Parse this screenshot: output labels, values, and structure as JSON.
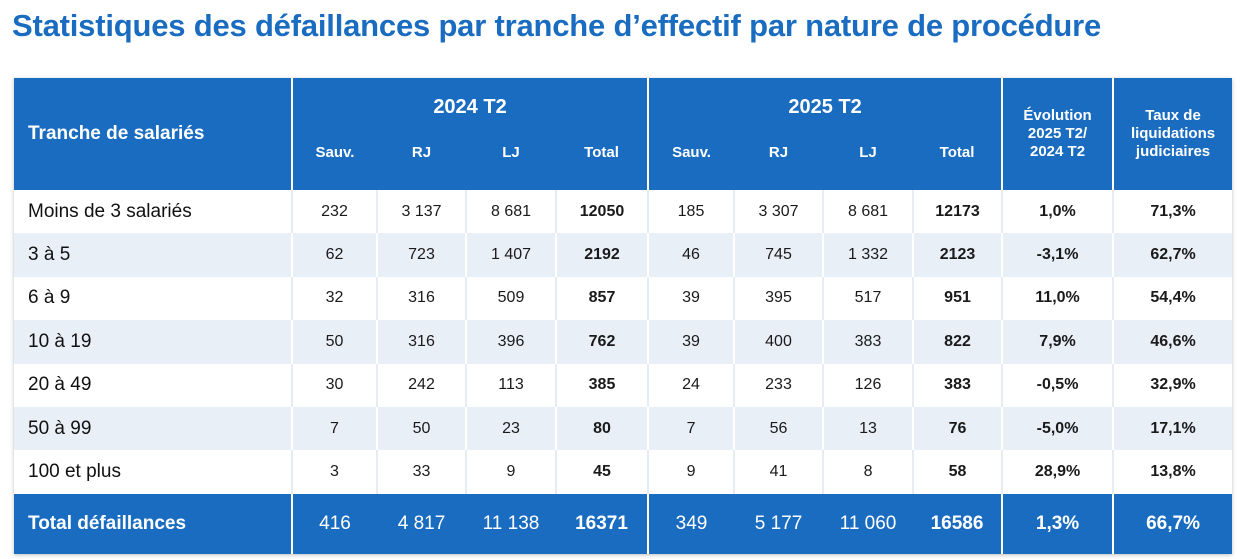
{
  "title": "Statistiques des défaillances par tranche d’effectif par nature de procédure",
  "header": {
    "row_label": "Tranche de salariés",
    "year1": "2024 T2",
    "year2": "2025 T2",
    "sub_cols": [
      "Sauv.",
      "RJ",
      "LJ",
      "Total"
    ],
    "evolution": [
      "Évolution",
      "2025 T2/",
      "2024 T2"
    ],
    "taux": [
      "Taux de",
      "liquidations",
      "judiciaires"
    ]
  },
  "rows": [
    {
      "label": "Moins de 3 salariés",
      "y1": [
        "232",
        "3 137",
        "8 681",
        "12050"
      ],
      "y2": [
        "185",
        "3 307",
        "8 681",
        "12173"
      ],
      "evol": "1,0%",
      "taux": "71,3%"
    },
    {
      "label": "3 à 5",
      "y1": [
        "62",
        "723",
        "1 407",
        "2192"
      ],
      "y2": [
        "46",
        "745",
        "1 332",
        "2123"
      ],
      "evol": "-3,1%",
      "taux": "62,7%"
    },
    {
      "label": "6 à 9",
      "y1": [
        "32",
        "316",
        "509",
        "857"
      ],
      "y2": [
        "39",
        "395",
        "517",
        "951"
      ],
      "evol": "11,0%",
      "taux": "54,4%"
    },
    {
      "label": "10 à 19",
      "y1": [
        "50",
        "316",
        "396",
        "762"
      ],
      "y2": [
        "39",
        "400",
        "383",
        "822"
      ],
      "evol": "7,9%",
      "taux": "46,6%"
    },
    {
      "label": "20 à 49",
      "y1": [
        "30",
        "242",
        "113",
        "385"
      ],
      "y2": [
        "24",
        "233",
        "126",
        "383"
      ],
      "evol": "-0,5%",
      "taux": "32,9%"
    },
    {
      "label": "50 à 99",
      "y1": [
        "7",
        "50",
        "23",
        "80"
      ],
      "y2": [
        "7",
        "56",
        "13",
        "76"
      ],
      "evol": "-5,0%",
      "taux": "17,1%"
    },
    {
      "label": "100 et plus",
      "y1": [
        "3",
        "33",
        "9",
        "45"
      ],
      "y2": [
        "9",
        "41",
        "8",
        "58"
      ],
      "evol": "28,9%",
      "taux": "13,8%"
    }
  ],
  "total": {
    "label": "Total défaillances",
    "y1": [
      "416",
      "4 817",
      "11 138",
      "16371"
    ],
    "y2": [
      "349",
      "5 177",
      "11 060",
      "16586"
    ],
    "evol": "1,3%",
    "taux": "66,7%"
  },
  "colors": {
    "accent": "#1a6cc0",
    "stripe": "#e9eff7"
  }
}
